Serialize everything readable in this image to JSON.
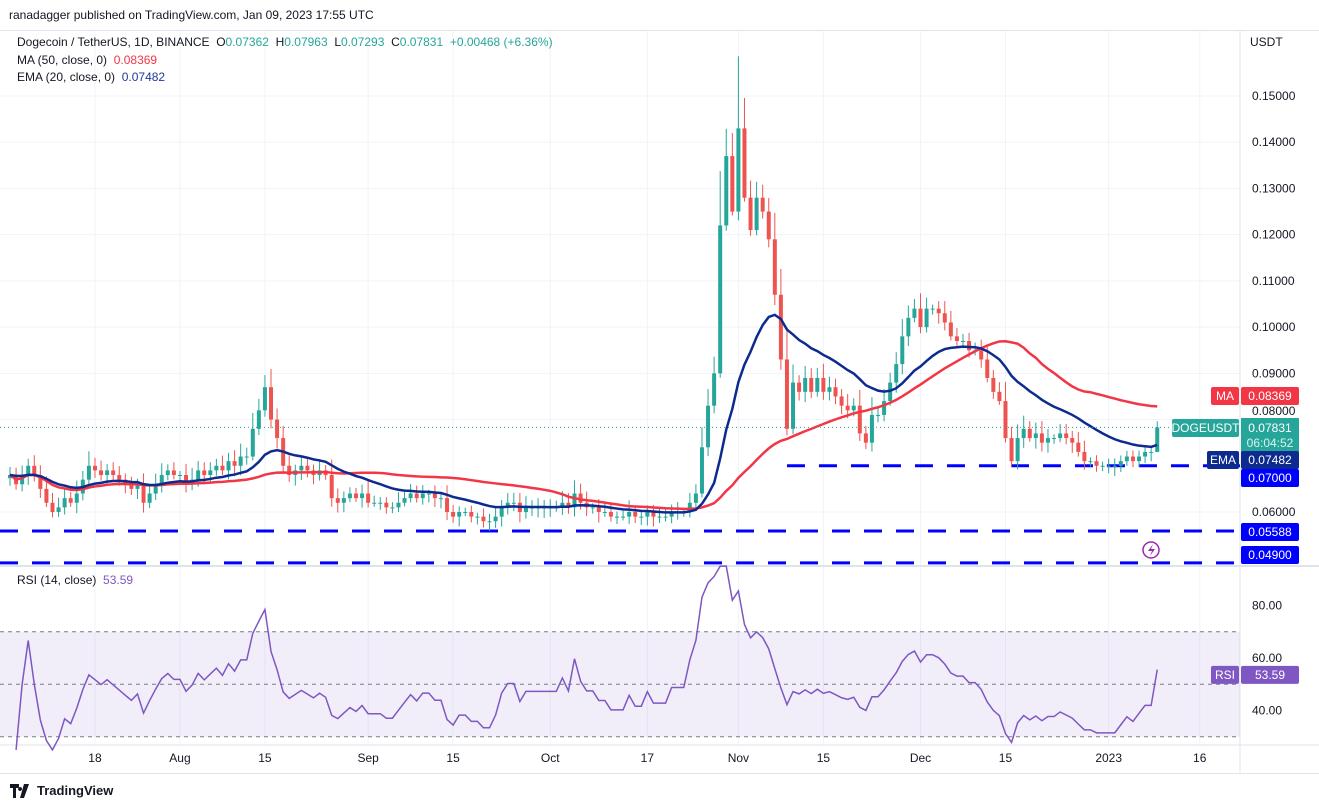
{
  "published": "ranadagger published on TradingView.com, Jan 09, 2023 17:55 UTC",
  "legend": {
    "symbol": "Dogecoin / TetherUS, 1D, BINANCE",
    "o_label": "O",
    "o": "0.07362",
    "h_label": "H",
    "h": "0.07963",
    "l_label": "L",
    "l": "0.07293",
    "c_label": "C",
    "c": "0.07831",
    "change": "+0.00468 (+6.36%)",
    "ma_label": "MA (50, close, 0)",
    "ma_value": "0.08369",
    "ema_label": "EMA (20, close, 0)",
    "ema_value": "0.07482",
    "rsi_label": "RSI (14, close)",
    "rsi_value": "53.59"
  },
  "axis_unit": "USDT",
  "footer": "TradingView",
  "colors": {
    "up": "#26a69a",
    "down": "#ef5350",
    "ma": "#f23645",
    "ema": "#0d2a8f",
    "level": "#0000ff",
    "rsi": "#7e57c2"
  },
  "chart_data": {
    "type": "candlestick",
    "title": "Dogecoin / TetherUS, 1D, BINANCE",
    "start_date": "2022-07-04",
    "ylim": [
      0.049,
      0.158
    ],
    "y_ticks": [
      "0.15000",
      "0.14000",
      "0.13000",
      "0.12000",
      "0.11000",
      "0.10000",
      "0.09000",
      "0.08000",
      "0.06000"
    ],
    "x_ticks": [
      {
        "label": "18",
        "day": 14
      },
      {
        "label": "Aug",
        "day": 28
      },
      {
        "label": "15",
        "day": 42
      },
      {
        "label": "Sep",
        "day": 59
      },
      {
        "label": "15",
        "day": 73
      },
      {
        "label": "Oct",
        "day": 89
      },
      {
        "label": "17",
        "day": 105
      },
      {
        "label": "Nov",
        "day": 120
      },
      {
        "label": "15",
        "day": 134
      },
      {
        "label": "Dec",
        "day": 150
      },
      {
        "label": "15",
        "day": 164
      },
      {
        "label": "2023",
        "day": 181
      },
      {
        "label": "16",
        "day": 196
      }
    ],
    "closes": [
      0.068,
      0.066,
      0.068,
      0.07,
      0.068,
      0.065,
      0.062,
      0.06,
      0.061,
      0.063,
      0.062,
      0.064,
      0.067,
      0.07,
      0.069,
      0.068,
      0.069,
      0.068,
      0.067,
      0.066,
      0.065,
      0.066,
      0.062,
      0.064,
      0.066,
      0.068,
      0.069,
      0.068,
      0.068,
      0.066,
      0.067,
      0.069,
      0.068,
      0.069,
      0.07,
      0.069,
      0.071,
      0.07,
      0.072,
      0.072,
      0.078,
      0.082,
      0.087,
      0.08,
      0.076,
      0.07,
      0.068,
      0.069,
      0.07,
      0.069,
      0.068,
      0.069,
      0.068,
      0.063,
      0.062,
      0.063,
      0.064,
      0.063,
      0.064,
      0.062,
      0.062,
      0.062,
      0.061,
      0.061,
      0.062,
      0.063,
      0.064,
      0.063,
      0.064,
      0.064,
      0.063,
      0.063,
      0.06,
      0.059,
      0.06,
      0.06,
      0.059,
      0.059,
      0.058,
      0.058,
      0.059,
      0.061,
      0.062,
      0.062,
      0.06,
      0.061,
      0.061,
      0.061,
      0.061,
      0.061,
      0.061,
      0.062,
      0.061,
      0.064,
      0.062,
      0.061,
      0.061,
      0.06,
      0.06,
      0.059,
      0.059,
      0.059,
      0.06,
      0.059,
      0.059,
      0.06,
      0.059,
      0.059,
      0.059,
      0.06,
      0.06,
      0.06,
      0.062,
      0.064,
      0.074,
      0.083,
      0.09,
      0.122,
      0.137,
      0.125,
      0.143,
      0.128,
      0.121,
      0.128,
      0.125,
      0.119,
      0.107,
      0.093,
      0.078,
      0.088,
      0.086,
      0.089,
      0.086,
      0.089,
      0.086,
      0.087,
      0.085,
      0.083,
      0.082,
      0.083,
      0.077,
      0.075,
      0.081,
      0.081,
      0.084,
      0.088,
      0.092,
      0.098,
      0.102,
      0.104,
      0.1,
      0.104,
      0.104,
      0.103,
      0.101,
      0.098,
      0.097,
      0.097,
      0.095,
      0.095,
      0.093,
      0.089,
      0.086,
      0.084,
      0.076,
      0.071,
      0.076,
      0.078,
      0.076,
      0.077,
      0.075,
      0.076,
      0.076,
      0.077,
      0.076,
      0.075,
      0.073,
      0.071,
      0.071,
      0.07,
      0.07,
      0.07,
      0.07,
      0.071,
      0.072,
      0.071,
      0.072,
      0.073,
      0.073,
      0.07831
    ],
    "levels": [
      {
        "value": 0.07,
        "label": "0.07000"
      },
      {
        "value": 0.05588,
        "label": "0.05588"
      },
      {
        "value": 0.049,
        "label": "0.04900"
      }
    ],
    "price_tags": {
      "ma": {
        "name": "MA",
        "value": "0.08369"
      },
      "last": {
        "name": "DOGEUSDT",
        "value": "0.07831",
        "countdown": "06:04:52"
      },
      "ema": {
        "name": "EMA",
        "value": "0.07482"
      }
    },
    "rsi": {
      "ylim": [
        25,
        95
      ],
      "ticks": [
        "80.00",
        "60.00",
        "40.00"
      ],
      "band": [
        30,
        70
      ],
      "tag": "RSI",
      "value": "53.59"
    }
  }
}
